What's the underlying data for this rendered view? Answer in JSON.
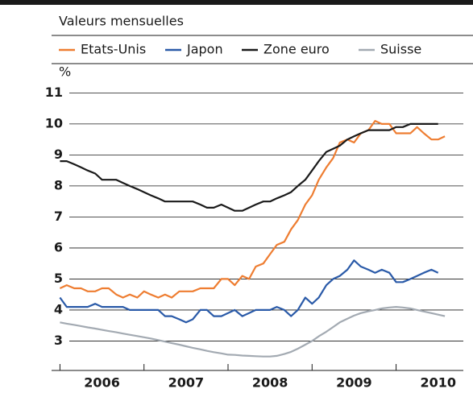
{
  "chart_data": {
    "type": "line",
    "subtitle": "Valeurs mensuelles",
    "ylabel": "%",
    "x": [
      2006,
      2006.08,
      2006.17,
      2006.25,
      2006.33,
      2006.42,
      2006.5,
      2006.58,
      2006.67,
      2006.75,
      2006.83,
      2006.92,
      2007,
      2007.08,
      2007.17,
      2007.25,
      2007.33,
      2007.42,
      2007.5,
      2007.58,
      2007.67,
      2007.75,
      2007.83,
      2007.92,
      2008,
      2008.08,
      2008.17,
      2008.25,
      2008.33,
      2008.42,
      2008.5,
      2008.58,
      2008.67,
      2008.75,
      2008.83,
      2008.92,
      2009,
      2009.08,
      2009.17,
      2009.25,
      2009.33,
      2009.42,
      2009.5,
      2009.58,
      2009.67,
      2009.75,
      2009.83,
      2009.92,
      2010,
      2010.08,
      2010.17,
      2010.25,
      2010.33,
      2010.42,
      2010.5,
      2010.58
    ],
    "series": [
      {
        "name": "Etats-Unis",
        "color": "#ee7d31",
        "values": [
          4.7,
          4.8,
          4.7,
          4.7,
          4.6,
          4.6,
          4.7,
          4.7,
          4.5,
          4.4,
          4.5,
          4.4,
          4.6,
          4.5,
          4.4,
          4.5,
          4.4,
          4.6,
          4.6,
          4.6,
          4.7,
          4.7,
          4.7,
          5.0,
          5.0,
          4.8,
          5.1,
          5.0,
          5.4,
          5.5,
          5.8,
          6.1,
          6.2,
          6.6,
          6.9,
          7.4,
          7.7,
          8.2,
          8.6,
          8.9,
          9.4,
          9.5,
          9.4,
          9.7,
          9.8,
          10.1,
          10.0,
          10.0,
          9.7,
          9.7,
          9.7,
          9.9,
          9.7,
          9.5,
          9.5,
          9.6
        ]
      },
      {
        "name": "Japon",
        "color": "#2a5aa8",
        "values": [
          4.4,
          4.1,
          4.1,
          4.1,
          4.1,
          4.2,
          4.1,
          4.1,
          4.1,
          4.1,
          4.0,
          4.0,
          4.0,
          4.0,
          4.0,
          3.8,
          3.8,
          3.7,
          3.6,
          3.7,
          4.0,
          4.0,
          3.8,
          3.8,
          3.9,
          4.0,
          3.8,
          3.9,
          4.0,
          4.0,
          4.0,
          4.1,
          4.0,
          3.8,
          4.0,
          4.4,
          4.2,
          4.4,
          4.8,
          5.0,
          5.1,
          5.3,
          5.6,
          5.4,
          5.3,
          5.2,
          5.3,
          5.2,
          4.9,
          4.9,
          5.0,
          5.1,
          5.2,
          5.3,
          5.2,
          null
        ]
      },
      {
        "name": "Zone euro",
        "color": "#1a1a1a",
        "values": [
          8.8,
          8.8,
          8.7,
          8.6,
          8.5,
          8.4,
          8.2,
          8.2,
          8.2,
          8.1,
          8.0,
          7.9,
          7.8,
          7.7,
          7.6,
          7.5,
          7.5,
          7.5,
          7.5,
          7.5,
          7.4,
          7.3,
          7.3,
          7.4,
          7.3,
          7.2,
          7.2,
          7.3,
          7.4,
          7.5,
          7.5,
          7.6,
          7.7,
          7.8,
          8.0,
          8.2,
          8.5,
          8.8,
          9.1,
          9.2,
          9.3,
          9.5,
          9.6,
          9.7,
          9.8,
          9.8,
          9.8,
          9.8,
          9.9,
          9.9,
          10.0,
          10.0,
          10.0,
          10.0,
          10.0,
          null
        ]
      },
      {
        "name": "Suisse",
        "color": "#a3aab2",
        "values": [
          3.6,
          3.56,
          3.52,
          3.48,
          3.44,
          3.4,
          3.36,
          3.32,
          3.28,
          3.24,
          3.2,
          3.16,
          3.12,
          3.08,
          3.03,
          2.98,
          2.93,
          2.88,
          2.83,
          2.78,
          2.73,
          2.68,
          2.64,
          2.6,
          2.56,
          2.55,
          2.53,
          2.52,
          2.51,
          2.5,
          2.5,
          2.52,
          2.58,
          2.65,
          2.75,
          2.88,
          3.0,
          3.15,
          3.3,
          3.45,
          3.6,
          3.72,
          3.82,
          3.9,
          3.96,
          4.0,
          4.05,
          4.08,
          4.1,
          4.08,
          4.05,
          4.0,
          3.95,
          3.9,
          3.85,
          3.8
        ]
      }
    ],
    "xlim": [
      2005.9,
      2010.8
    ],
    "xticks": [
      2006,
      2007,
      2008,
      2009,
      2010
    ],
    "ylim": [
      2.05,
      11.4
    ],
    "yticks": [
      3,
      4,
      5,
      6,
      7,
      8,
      9,
      10,
      11
    ],
    "grid": true
  }
}
